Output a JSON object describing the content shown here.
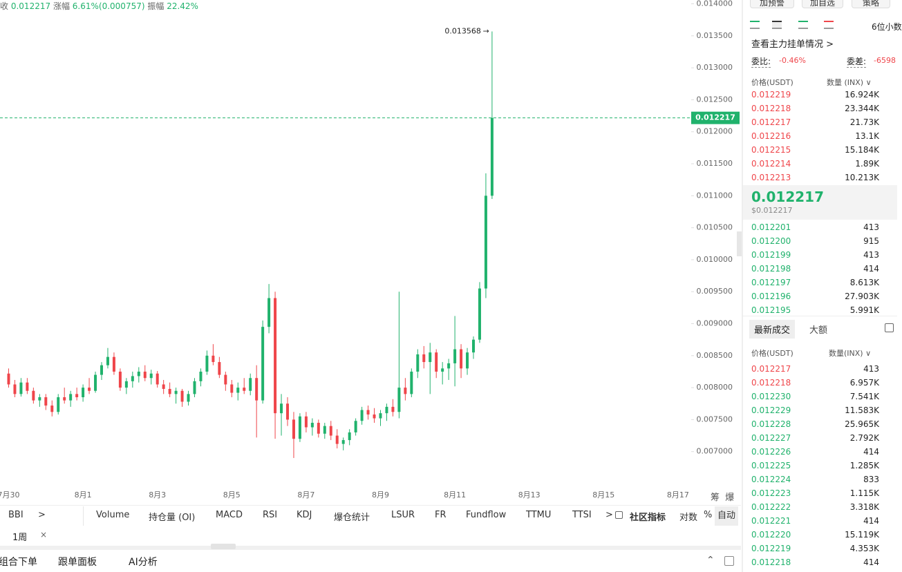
{
  "header": {
    "close_label": "收",
    "close": "0.012217",
    "change_label": "涨幅",
    "change": "6.61%(0.000757)",
    "amplitude_label": "振幅",
    "amplitude": "22.42%"
  },
  "chart_data": {
    "type": "candlestick",
    "up_color": "#20b26c",
    "down_color": "#ef454a",
    "ylim": [
      0.0065,
      0.01406
    ],
    "yticks": [
      {
        "value": 0.014,
        "label": "0.014000"
      },
      {
        "value": 0.0135,
        "label": "0.013500"
      },
      {
        "value": 0.013,
        "label": "0.013000"
      },
      {
        "value": 0.0125,
        "label": "0.012500"
      },
      {
        "value": 0.012,
        "label": "0.012000"
      },
      {
        "value": 0.0115,
        "label": "0.011500"
      },
      {
        "value": 0.011,
        "label": "0.011000"
      },
      {
        "value": 0.0105,
        "label": "0.010500"
      },
      {
        "value": 0.01,
        "label": "0.010000"
      },
      {
        "value": 0.0095,
        "label": "0.009500"
      },
      {
        "value": 0.009,
        "label": "0.009000"
      },
      {
        "value": 0.0085,
        "label": "0.008500"
      },
      {
        "value": 0.008,
        "label": "0.008000"
      },
      {
        "value": 0.0075,
        "label": "0.007500"
      },
      {
        "value": 0.007,
        "label": "0.007000"
      }
    ],
    "xticks": [
      "7月30",
      "8月1",
      "8月3",
      "8月5",
      "8月7",
      "8月9",
      "8月11",
      "8月13",
      "8月15",
      "8月17"
    ],
    "last_price": 0.012217,
    "candles": [
      [
        0.00822,
        0.0083,
        0.008,
        0.00805
      ],
      [
        0.00805,
        0.00812,
        0.00785,
        0.0079
      ],
      [
        0.0079,
        0.00815,
        0.00786,
        0.00808
      ],
      [
        0.00808,
        0.00815,
        0.0079,
        0.00795
      ],
      [
        0.00795,
        0.008,
        0.00775,
        0.0078
      ],
      [
        0.0078,
        0.0079,
        0.0077,
        0.00785
      ],
      [
        0.00785,
        0.0079,
        0.00765,
        0.00772
      ],
      [
        0.00772,
        0.0078,
        0.00755,
        0.00762
      ],
      [
        0.00762,
        0.0079,
        0.00758,
        0.00785
      ],
      [
        0.00785,
        0.008,
        0.00775,
        0.0078
      ],
      [
        0.0078,
        0.00795,
        0.0077,
        0.0079
      ],
      [
        0.0079,
        0.008,
        0.0078,
        0.00785
      ],
      [
        0.00785,
        0.00805,
        0.00778,
        0.008
      ],
      [
        0.008,
        0.00815,
        0.0079,
        0.00795
      ],
      [
        0.00795,
        0.00825,
        0.00792,
        0.0082
      ],
      [
        0.0082,
        0.0084,
        0.00812,
        0.00835
      ],
      [
        0.00835,
        0.00862,
        0.0083,
        0.00848
      ],
      [
        0.00848,
        0.00855,
        0.0082,
        0.00825
      ],
      [
        0.00825,
        0.0083,
        0.00795,
        0.008
      ],
      [
        0.008,
        0.00815,
        0.0079,
        0.0081
      ],
      [
        0.0081,
        0.00825,
        0.008,
        0.00818
      ],
      [
        0.00818,
        0.00832,
        0.00808,
        0.00825
      ],
      [
        0.00825,
        0.00835,
        0.0081,
        0.00815
      ],
      [
        0.00815,
        0.00828,
        0.00805,
        0.00822
      ],
      [
        0.00822,
        0.00826,
        0.008,
        0.00805
      ],
      [
        0.00805,
        0.00812,
        0.0079,
        0.00798
      ],
      [
        0.00798,
        0.00808,
        0.00785,
        0.0079
      ],
      [
        0.0079,
        0.008,
        0.00775,
        0.00795
      ],
      [
        0.00795,
        0.00798,
        0.0077,
        0.00778
      ],
      [
        0.00778,
        0.00795,
        0.00772,
        0.0079
      ],
      [
        0.0079,
        0.00815,
        0.00785,
        0.0081
      ],
      [
        0.0081,
        0.0083,
        0.00802,
        0.00825
      ],
      [
        0.00825,
        0.00858,
        0.0082,
        0.0085
      ],
      [
        0.0085,
        0.00868,
        0.00835,
        0.0084
      ],
      [
        0.0084,
        0.00848,
        0.00815,
        0.0082
      ],
      [
        0.0082,
        0.00825,
        0.00795,
        0.00805
      ],
      [
        0.00805,
        0.00812,
        0.00785,
        0.00792
      ],
      [
        0.00792,
        0.00808,
        0.0078,
        0.008
      ],
      [
        0.008,
        0.00815,
        0.0079,
        0.00795
      ],
      [
        0.00795,
        0.00822,
        0.00788,
        0.00815
      ],
      [
        0.00815,
        0.00835,
        0.00722,
        0.0078
      ],
      [
        0.0078,
        0.00905,
        0.00775,
        0.00895
      ],
      [
        0.00895,
        0.00962,
        0.00885,
        0.0094
      ],
      [
        0.0094,
        0.0095,
        0.0072,
        0.0076
      ],
      [
        0.0076,
        0.0079,
        0.00725,
        0.00775
      ],
      [
        0.00775,
        0.00785,
        0.0074,
        0.0075
      ],
      [
        0.0075,
        0.00762,
        0.0069,
        0.0072
      ],
      [
        0.0072,
        0.0076,
        0.00715,
        0.00755
      ],
      [
        0.00755,
        0.00762,
        0.0073,
        0.00738
      ],
      [
        0.00738,
        0.00752,
        0.00725,
        0.00745
      ],
      [
        0.00745,
        0.0075,
        0.00722,
        0.00728
      ],
      [
        0.00728,
        0.00745,
        0.0072,
        0.0074
      ],
      [
        0.0074,
        0.00748,
        0.00718,
        0.00725
      ],
      [
        0.00725,
        0.00735,
        0.00705,
        0.00712
      ],
      [
        0.00712,
        0.00722,
        0.00702,
        0.00718
      ],
      [
        0.00718,
        0.00735,
        0.0071,
        0.0073
      ],
      [
        0.0073,
        0.00752,
        0.00725,
        0.00748
      ],
      [
        0.00748,
        0.0077,
        0.00742,
        0.00765
      ],
      [
        0.00765,
        0.00772,
        0.0075,
        0.00758
      ],
      [
        0.00758,
        0.00768,
        0.00745,
        0.00752
      ],
      [
        0.00752,
        0.00765,
        0.0074,
        0.0076
      ],
      [
        0.0076,
        0.00775,
        0.00748,
        0.0077
      ],
      [
        0.0077,
        0.00782,
        0.00755,
        0.00762
      ],
      [
        0.00762,
        0.0095,
        0.00752,
        0.008
      ],
      [
        0.008,
        0.00815,
        0.0078,
        0.0079
      ],
      [
        0.0079,
        0.0083,
        0.00785,
        0.00825
      ],
      [
        0.00825,
        0.0086,
        0.00815,
        0.00852
      ],
      [
        0.00852,
        0.00865,
        0.0083,
        0.0084
      ],
      [
        0.0084,
        0.0087,
        0.0079,
        0.00855
      ],
      [
        0.00855,
        0.0086,
        0.00815,
        0.00825
      ],
      [
        0.00825,
        0.0084,
        0.00805,
        0.0083
      ],
      [
        0.0083,
        0.00845,
        0.00812,
        0.00838
      ],
      [
        0.00838,
        0.00912,
        0.00802,
        0.0086
      ],
      [
        0.0086,
        0.00868,
        0.00815,
        0.0083
      ],
      [
        0.0083,
        0.00862,
        0.0082,
        0.00855
      ],
      [
        0.00855,
        0.0088,
        0.00845,
        0.00875
      ],
      [
        0.00875,
        0.00965,
        0.0087,
        0.00955
      ],
      [
        0.00955,
        0.01135,
        0.0094,
        0.011
      ],
      [
        0.011,
        0.013568,
        0.01095,
        0.012217
      ]
    ]
  },
  "axis_tools": [
    "筹",
    "爆"
  ],
  "indicators": {
    "first": "BBI",
    "more": ">",
    "items": [
      "Volume",
      "持仓量 (OI)",
      "MACD",
      "RSI",
      "KDJ",
      "爆仓统计",
      "LSUR",
      "FR",
      "Fundflow",
      "TTMU",
      "TTSI"
    ],
    "more2": ">",
    "community": "社区指标",
    "log": "对数",
    "percent": "%",
    "auto": "自动",
    "period": "1周",
    "close": "×"
  },
  "bottom_tabs": [
    "组合下单",
    "跟单面板",
    "AI分析"
  ],
  "top_buttons": [
    "加预警",
    "加自选",
    "策略"
  ],
  "decimals": "6位小数",
  "orderbook": {
    "link": "查看主力挂单情况 >",
    "ratio_label": "委比:",
    "ratio": "-0.46%",
    "diff_label": "委差:",
    "diff": "-6598",
    "price_header": "价格(USDT)",
    "qty_header": "数量 (INX) ∨",
    "asks": [
      [
        "0.012219",
        "16.924K"
      ],
      [
        "0.012218",
        "23.344K"
      ],
      [
        "0.012217",
        "21.73K"
      ],
      [
        "0.012216",
        "13.1K"
      ],
      [
        "0.012215",
        "15.184K"
      ],
      [
        "0.012214",
        "1.89K"
      ],
      [
        "0.012213",
        "10.213K"
      ]
    ],
    "mid": "0.012217",
    "mid_usd": "$0.012217",
    "bids": [
      [
        "0.012201",
        "413"
      ],
      [
        "0.012200",
        "915"
      ],
      [
        "0.012199",
        "413"
      ],
      [
        "0.012198",
        "414"
      ],
      [
        "0.012197",
        "8.613K"
      ],
      [
        "0.012196",
        "27.903K"
      ],
      [
        "0.012195",
        "5.991K"
      ]
    ]
  },
  "trades": {
    "tabs": [
      "最新成交",
      "大额"
    ],
    "price_header": "价格(USDT)",
    "qty_header": "数量(INX) ∨",
    "rows": [
      [
        "0.012217",
        "413"
      ],
      [
        "0.012218",
        "6.957K"
      ],
      [
        "0.012230",
        "7.541K"
      ],
      [
        "0.012229",
        "11.583K"
      ],
      [
        "0.012228",
        "25.965K"
      ],
      [
        "0.012227",
        "2.792K"
      ],
      [
        "0.012226",
        "414"
      ],
      [
        "0.012225",
        "1.285K"
      ],
      [
        "0.012224",
        "833"
      ],
      [
        "0.012223",
        "1.115K"
      ],
      [
        "0.012222",
        "3.318K"
      ],
      [
        "0.012221",
        "414"
      ],
      [
        "0.012220",
        "15.119K"
      ],
      [
        "0.012219",
        "4.353K"
      ],
      [
        "0.012218",
        "414"
      ]
    ],
    "row_colors": [
      "#ef454a",
      "#ef454a",
      "#20b26c",
      "#20b26c",
      "#20b26c",
      "#20b26c",
      "#20b26c",
      "#20b26c",
      "#20b26c",
      "#20b26c",
      "#20b26c",
      "#20b26c",
      "#20b26c",
      "#20b26c",
      "#20b26c"
    ]
  }
}
